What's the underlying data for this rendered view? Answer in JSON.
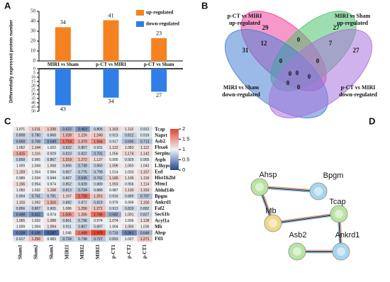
{
  "chart_data": [
    {
      "type": "bar",
      "panel_label": "A",
      "ylabel": "Differentially expressed protein number",
      "categories": [
        "MIRI vs Sham",
        "p-CT vs MIRI",
        "p-CT vs Sham"
      ],
      "series": [
        {
          "name": "up-regulated",
          "color": "#f58220",
          "values": [
            34,
            41,
            23
          ]
        },
        {
          "name": "down-regulated",
          "color": "#2f7fe6",
          "values": [
            43,
            34,
            27
          ],
          "axis": "y2"
        }
      ],
      "ylim": [
        0,
        50
      ],
      "yticks": [
        0,
        10,
        20,
        30,
        40,
        50
      ],
      "y2lim": [
        0,
        50
      ],
      "y2ticks": [
        0,
        5,
        10,
        15,
        20,
        25,
        30,
        35,
        40,
        45,
        50
      ],
      "y2_inverted": true
    },
    {
      "type": "venn",
      "panel_label": "B",
      "sets": [
        {
          "label": [
            "p-CT vs MIRI",
            "up-regulated"
          ],
          "color": "#f0449e"
        },
        {
          "label": [
            "MIRI vs Sham",
            "up-regulated"
          ],
          "color": "#4cc26e"
        },
        {
          "label": [
            "MIRI vs Sham",
            "down-regulated"
          ],
          "color": "#4a82d4"
        },
        {
          "label": [
            "p-CT vs MIRI",
            "down-regulated"
          ],
          "color": "#a974dc"
        }
      ],
      "regions": [
        {
          "value": 29,
          "color": "#111111"
        },
        {
          "value": 27,
          "color": "#111111"
        },
        {
          "value": 31,
          "color": "#111111"
        },
        {
          "value": 27,
          "color": "#111111"
        },
        {
          "value": 12,
          "color": "#e0302a"
        },
        {
          "value": 0,
          "color": "#111111"
        },
        {
          "value": 7,
          "color": "#e0302a"
        },
        {
          "value": 0,
          "color": "#111111"
        },
        {
          "value": 0,
          "color": "#111111"
        },
        {
          "value": 0,
          "color": "#111111"
        },
        {
          "value": 0,
          "color": "#111111"
        },
        {
          "value": 0,
          "color": "#111111"
        },
        {
          "value": 0,
          "color": "#111111"
        },
        {
          "value": 0,
          "color": "#111111"
        }
      ]
    },
    {
      "type": "heatmap",
      "panel_label": "C",
      "decimals": 3,
      "columns": [
        "Sham1",
        "Sham2",
        "Sham3",
        "MIRI1",
        "MIRI2",
        "MIRI3",
        "p-CT1",
        "p-CT2",
        "p-CT3"
      ],
      "rows": [
        "Tcap",
        "Naprt",
        "Asb2",
        "Fbxo6",
        "Serpina6",
        "Asph",
        "L3hypdh",
        "Esd",
        "Hist1h2bl",
        "Mtm1",
        "Abhd14b",
        "Bpgm",
        "Ankrd1",
        "Faf2",
        "Sec61b",
        "Acyl1a",
        "Mb",
        "Ahsp",
        "Ftl1"
      ],
      "values": [
        [
          1.071,
          1.211,
          1.239,
          0.622,
          0.463,
          0.805,
          1.163,
          1.112,
          0.912
        ],
        [
          0.808,
          0.78,
          0.868,
          1.328,
          1.226,
          1.24,
          0.923,
          0.812,
          0.916
        ],
        [
          0.659,
          0.708,
          0.549,
          1.714,
          1.37,
          1.554,
          0.917,
          0.695,
          0.713
        ],
        [
          1.052,
          1.144,
          1.022,
          0.822,
          0.857,
          0.931,
          1.112,
          1.083,
          1.112
        ],
        [
          1.415,
          1.116,
          0.929,
          0.823,
          0.822,
          0.701,
          1.056,
          1.174,
          1.142
        ],
        [
          0.858,
          0.965,
          0.867,
          1.319,
          1.272,
          1.137,
          0.995,
          0.929,
          0.955
        ],
        [
          1.009,
          1.044,
          1.068,
          0.866,
          0.749,
          0.85,
          1.096,
          1.06,
          1.043
        ],
        [
          1.159,
          1.004,
          0.984,
          0.867,
          0.775,
          0.799,
          1.014,
          1.033,
          1.157
        ],
        [
          0.989,
          1.034,
          0.944,
          0.867,
          0.645,
          0.762,
          1.18,
          1.105,
          1.119
        ],
        [
          1.156,
          0.954,
          0.974,
          0.852,
          0.828,
          0.889,
          1.093,
          0.956,
          1.114
        ],
        [
          1.05,
          1.032,
          1.158,
          0.813,
          0.724,
          0.889,
          0.987,
          1.13,
          1.153
        ],
        [
          0.904,
          0.741,
          0.781,
          1.167,
          1.73,
          1.261,
          0.916,
          0.889,
          0.707
        ],
        [
          1.103,
          1.092,
          1.316,
          0.882,
          0.872,
          0.819,
          0.979,
          0.999,
          1.16
        ],
        [
          0.856,
          0.807,
          0.905,
          1.086,
          1.256,
          1.271,
          0.913,
          0.839,
          0.882
        ],
        [
          0.498,
          0.422,
          0.974,
          1.505,
          1.265,
          1.745,
          0.582,
          1.091,
          0.827
        ],
        [
          1.065,
          1.032,
          1.088,
          0.861,
          0.796,
          0.974,
          1.074,
          1.006,
          1.128
        ],
        [
          1.009,
          1.004,
          1.094,
          0.911,
          0.807,
          0.897,
          1.004,
          1.093,
          1.036
        ],
        [
          0.328,
          0.338,
          0.187,
          1.045,
          1.688,
          1.97,
          0.733,
          0.361,
          0.648
        ],
        [
          0.917,
          1.256,
          0.983,
          0.724,
          0.798,
          0.727,
          0.893,
          1.027,
          1.271
        ]
      ],
      "clim": [
        0,
        2
      ],
      "cticks": [
        0,
        0.5,
        1,
        1.5,
        2
      ],
      "colors": [
        "#23478f",
        "#eef3f5",
        "#e4432f"
      ]
    },
    {
      "type": "network",
      "panel_label": "D",
      "nodes": [
        {
          "label": "Ahsp",
          "color": "#b9e3a2"
        },
        {
          "label": "Bpgm",
          "color": "#a9d4ec"
        },
        {
          "label": "Mb",
          "color": "#ecd98a"
        },
        {
          "label": "Tcap",
          "color": "#b9e3a2"
        },
        {
          "label": "Asb2",
          "color": "#b9e3a2"
        },
        {
          "label": "Ankrd1",
          "color": "#a9d4ec"
        }
      ],
      "edges": [
        [
          "Ahsp",
          "Bpgm"
        ],
        [
          "Ahsp",
          "Mb"
        ],
        [
          "Mb",
          "Tcap"
        ],
        [
          "Tcap",
          "Ankrd1"
        ],
        [
          "Asb2",
          "Ankrd1"
        ]
      ]
    }
  ]
}
